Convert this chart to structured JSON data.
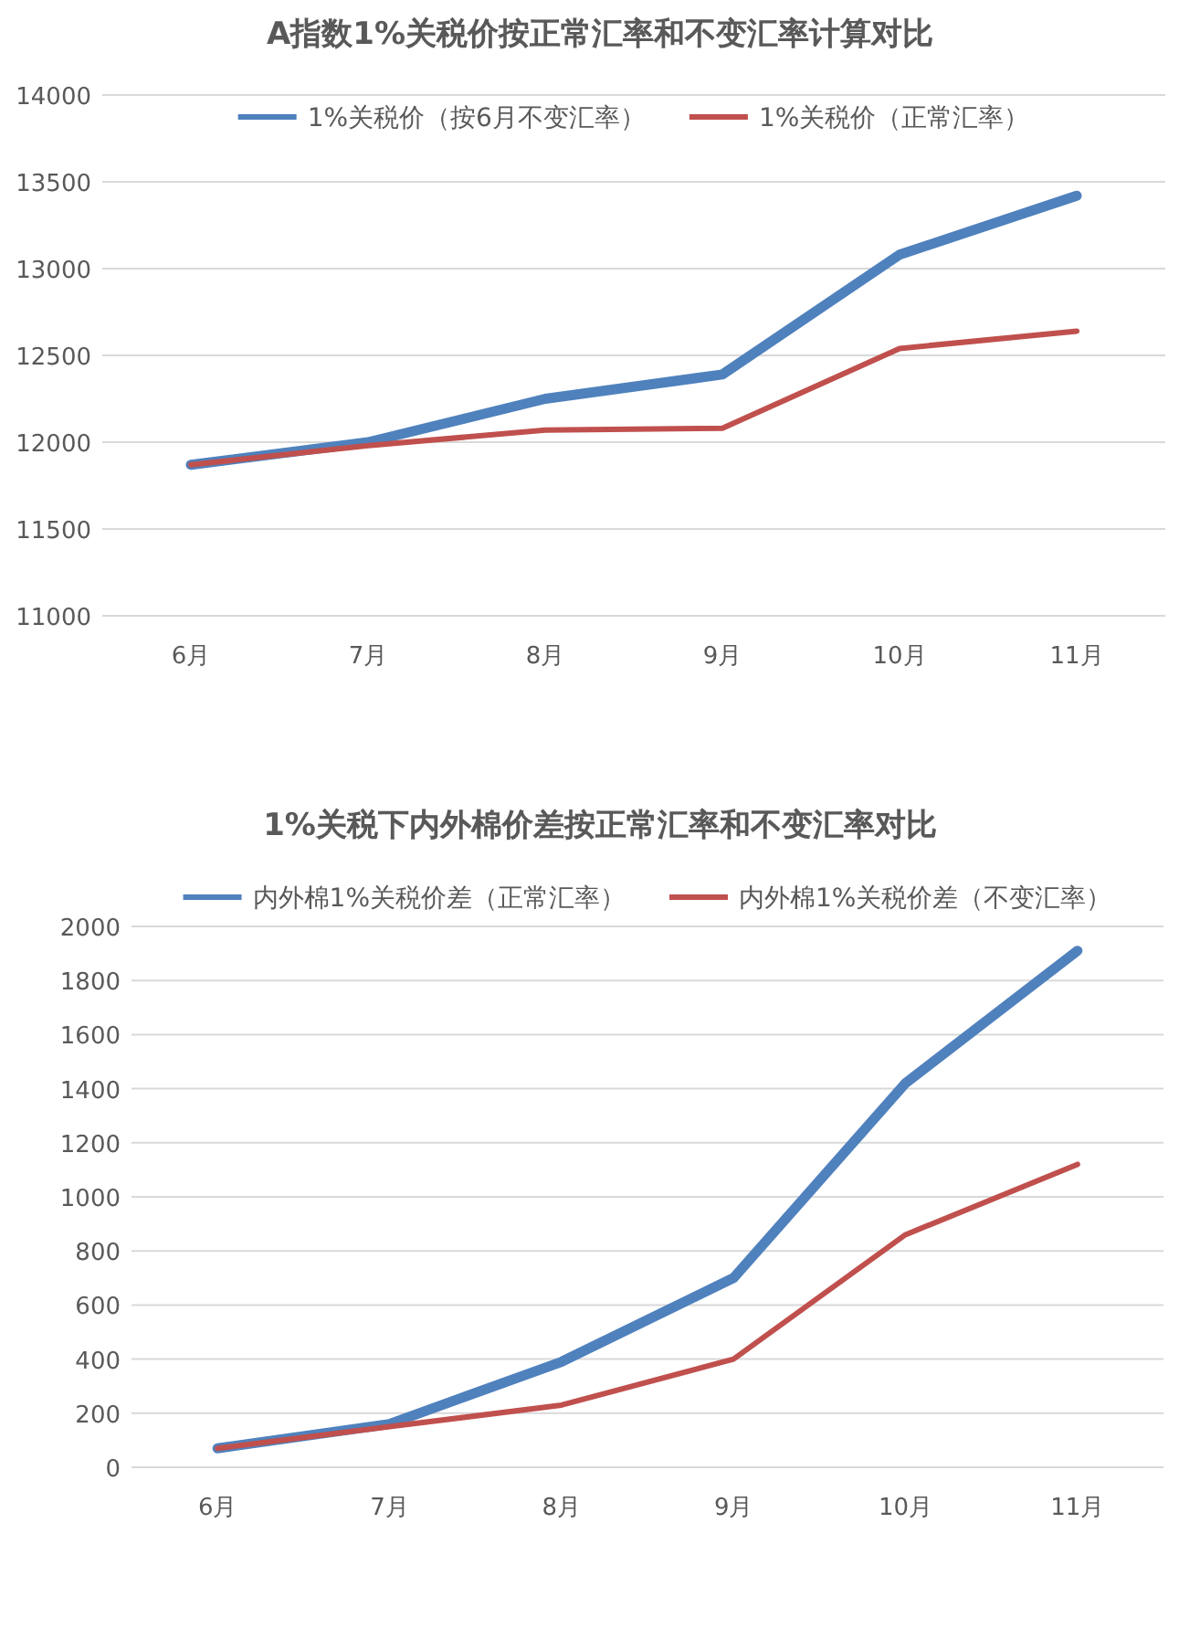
{
  "chart_data": [
    {
      "type": "line",
      "title": "A指数1%关税价按正常汇率和不变汇率计算对比",
      "categories": [
        "6月",
        "7月",
        "8月",
        "9月",
        "10月",
        "11月"
      ],
      "series": [
        {
          "name": "1%关税价（按6月不变汇率）",
          "color": "#4f81bd",
          "values": [
            11870,
            12000,
            12250,
            12390,
            13080,
            13420
          ]
        },
        {
          "name": "1%关税价（正常汇率）",
          "color": "#c0504d",
          "values": [
            11870,
            11980,
            12070,
            12080,
            12540,
            12640
          ]
        }
      ],
      "ylim": [
        11000,
        14000
      ],
      "yticks": [
        11000,
        11500,
        12000,
        12500,
        13000,
        13500,
        14000
      ],
      "grid": "y",
      "legend": "top"
    },
    {
      "type": "line",
      "title": "1%关税下内外棉价差按正常汇率和不变汇率对比",
      "categories": [
        "6月",
        "7月",
        "8月",
        "9月",
        "10月",
        "11月"
      ],
      "series": [
        {
          "name": "内外棉1%关税价差（正常汇率）",
          "color": "#4f81bd",
          "values": [
            70,
            160,
            390,
            700,
            1420,
            1910
          ]
        },
        {
          "name": "内外棉1%关税价差（不变汇率）",
          "color": "#c0504d",
          "values": [
            70,
            150,
            230,
            400,
            860,
            1120
          ]
        }
      ],
      "ylim": [
        0,
        2000
      ],
      "yticks": [
        0,
        200,
        400,
        600,
        800,
        1000,
        1200,
        1400,
        1600,
        1800,
        2000
      ],
      "grid": "y",
      "legend": "top"
    }
  ]
}
